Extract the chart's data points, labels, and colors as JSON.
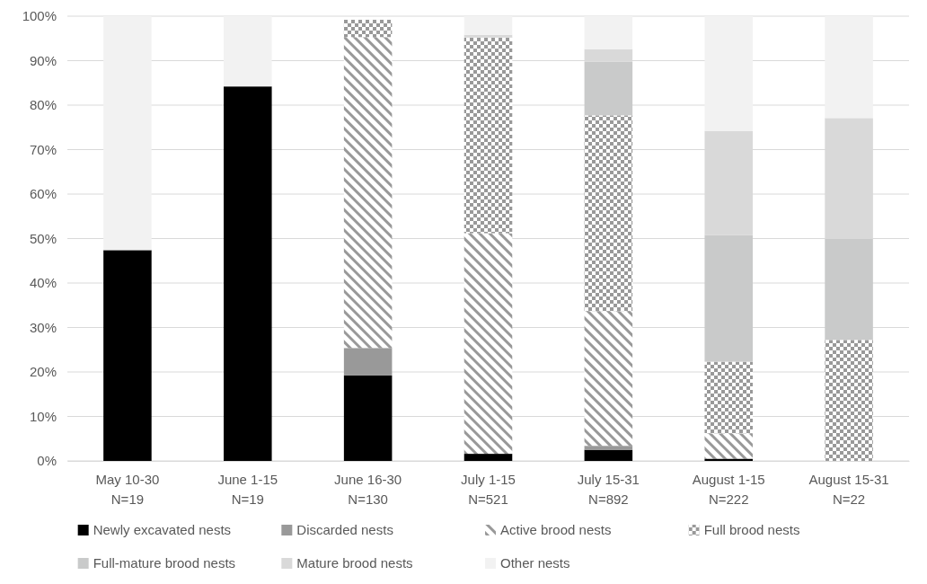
{
  "chart_data": {
    "type": "bar",
    "stacked": true,
    "categories": [
      "May 10-30\nN=19",
      "June 1-15\nN=19",
      "June 16-30\nN=130",
      "July 1-15\nN=521",
      "July 15-31\nN=892",
      "August 1-15\nN=222",
      "August 15-31\nN=22"
    ],
    "series": [
      {
        "name": "Newly excavated nests",
        "color": "#000000",
        "values": [
          47.4,
          84.2,
          19.2,
          1.6,
          2.5,
          0.5,
          null
        ]
      },
      {
        "name": "Discarded nests",
        "color": "#999999",
        "values": [
          null,
          null,
          6.2,
          null,
          0.9,
          null,
          null
        ]
      },
      {
        "name": "Active brood nests",
        "color": "#999999",
        "values": [
          null,
          null,
          69.9,
          49.6,
          30.3,
          5.7,
          null
        ]
      },
      {
        "name": "Full brood nests",
        "color": "#999999",
        "values": [
          null,
          null,
          3.9,
          44.0,
          44.0,
          16.1,
          27.2
        ]
      },
      {
        "name": "Full-mature brood nests",
        "color": "#c9caca",
        "values": [
          null,
          null,
          null,
          null,
          12.1,
          28.5,
          22.7
        ]
      },
      {
        "name": "Mature brood nests",
        "color": "#d9d9d9",
        "values": [
          null,
          null,
          null,
          0.6,
          2.8,
          23.4,
          27.2
        ]
      },
      {
        "name": "Other nests",
        "color": "#f2f2f2",
        "values": [
          52.6,
          15.8,
          null,
          4.2,
          7.4,
          25.8,
          22.9
        ]
      }
    ],
    "ylim": [
      0,
      100
    ],
    "yticks": [
      {
        "value": 0,
        "label": "0%"
      },
      {
        "value": 10,
        "label": "10%"
      },
      {
        "value": 20,
        "label": "20%"
      },
      {
        "value": 30,
        "label": "30%"
      },
      {
        "value": 40,
        "label": "40%"
      },
      {
        "value": 50,
        "label": "50%"
      },
      {
        "value": 60,
        "label": "60%"
      },
      {
        "value": 70,
        "label": "70%"
      },
      {
        "value": 80,
        "label": "80%"
      },
      {
        "value": 90,
        "label": "90%"
      },
      {
        "value": 100,
        "label": "100%"
      }
    ],
    "grid": "y",
    "legend": "bottom"
  }
}
